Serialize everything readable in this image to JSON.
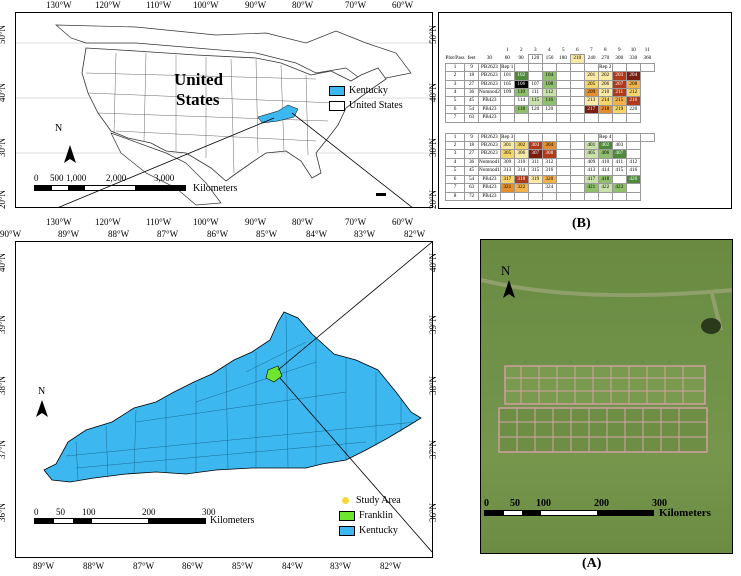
{
  "us_map": {
    "lon_ticks_top": [
      "130°W",
      "120°W",
      "110°W",
      "100°W",
      "90°W",
      "80°W",
      "70°W",
      "60°W"
    ],
    "lon_ticks_bottom": [
      "130°W",
      "120°W",
      "110°W",
      "100°W",
      "90°W",
      "80°W",
      "70°W",
      "60°W"
    ],
    "lat_ticks": [
      "50°N",
      "40°N",
      "30°N",
      "20°N"
    ],
    "country_label_1": "United",
    "country_label_2": "States",
    "legend": [
      {
        "label": "Kentucky",
        "color": "#3cb7f0"
      },
      {
        "label": "United States",
        "color": "#ffffff"
      }
    ],
    "scale_labels": [
      "0",
      "500",
      "1,000",
      "2,000",
      "3,000"
    ],
    "scale_unit": "Kilometers",
    "north": "N"
  },
  "ky_map": {
    "lon_ticks_top": [
      "90°W",
      "89°W",
      "88°W",
      "87°W",
      "86°W",
      "85°W",
      "84°W",
      "83°W",
      "82°W"
    ],
    "lon_ticks_bottom": [
      "89°W",
      "88°W",
      "87°W",
      "86°W",
      "85°W",
      "84°W",
      "83°W",
      "82°W"
    ],
    "lat_ticks": [
      "40°N",
      "39°N",
      "38°N",
      "37°N",
      "36°N"
    ],
    "scale_labels": [
      "0",
      "50",
      "100",
      "200",
      "300"
    ],
    "scale_unit": "Kilometers",
    "north": "N",
    "legend": [
      {
        "label": "Study Area",
        "color": "#f5d83b"
      },
      {
        "label": "Franklin",
        "color": "#6ee62f"
      },
      {
        "label": "Kentucky",
        "color": "#3cb7f0"
      }
    ],
    "county_color": "#3cb7f0",
    "franklin_color": "#6ee62f"
  },
  "aerial": {
    "label": "(A)",
    "north": "N",
    "scale_labels": [
      "0",
      "50",
      "100",
      "200",
      "300"
    ],
    "scale_unit": "Kilometers"
  },
  "plot_table": {
    "label": "(B)",
    "col_numbers": [
      "1",
      "2",
      "3",
      "4",
      "5",
      "6",
      "7",
      "8",
      "9",
      "10",
      "11",
      "12"
    ],
    "header_row": [
      "Plot/Pass",
      "feet",
      "30",
      "60",
      "90",
      "120",
      "150",
      "180",
      "210",
      "240",
      "270",
      "300",
      "330",
      "360"
    ],
    "block1_rows": [
      [
        "1",
        "9",
        "PB2623",
        "Rep 1",
        "",
        "",
        "",
        "",
        "",
        "",
        "Rep 2",
        "",
        "",
        ""
      ],
      [
        "2",
        "18",
        "PB2623",
        "101",
        "102",
        "",
        "104",
        "",
        "",
        "201",
        "202",
        "203",
        "204"
      ],
      [
        "3",
        "27",
        "PB2623",
        "105",
        "106",
        "107",
        "108",
        "",
        "",
        "205",
        "206",
        "207",
        "208"
      ],
      [
        "4",
        "36",
        "Nomnod2",
        "109",
        "110",
        "111",
        "112",
        "",
        "",
        "209",
        "210",
        "211",
        "212"
      ],
      [
        "5",
        "45",
        "PB423",
        "",
        "114",
        "115",
        "116",
        "",
        "",
        "213",
        "214",
        "215",
        "216"
      ],
      [
        "6",
        "54",
        "PB423",
        "",
        "118",
        "120",
        "120",
        "",
        "",
        "217",
        "218",
        "219",
        "220"
      ],
      [
        "7",
        "63",
        "PB423",
        "",
        "",
        "",
        "",
        "",
        "",
        "",
        "",
        "",
        ""
      ]
    ],
    "block2_rows": [
      [
        "1",
        "9",
        "PB2623",
        "Rep 3",
        "",
        "",
        "",
        "",
        "",
        "",
        "Rep 4",
        "",
        "",
        ""
      ],
      [
        "2",
        "18",
        "PB2623",
        "301",
        "302",
        "303",
        "304",
        "",
        "",
        "401",
        "402",
        "403",
        ""
      ],
      [
        "3",
        "27",
        "PB2623",
        "305",
        "306",
        "307",
        "308",
        "",
        "",
        "405",
        "406",
        "407",
        ""
      ],
      [
        "4",
        "36",
        "Nomnod1",
        "309",
        "310",
        "311",
        "312",
        "",
        "",
        "409",
        "410",
        "411",
        "412"
      ],
      [
        "5",
        "45",
        "Nomnod1",
        "313",
        "314",
        "315",
        "316",
        "",
        "",
        "413",
        "414",
        "415",
        "416"
      ],
      [
        "6",
        "54",
        "PB423",
        "317",
        "318",
        "319",
        "320",
        "",
        "",
        "417",
        "418",
        "",
        "420"
      ],
      [
        "7",
        "63",
        "PB423",
        "321",
        "322",
        "",
        "324",
        "",
        "",
        "421",
        "422",
        "423",
        ""
      ],
      [
        "8",
        "72",
        "PB423",
        "",
        "",
        "",
        "",
        "",
        "",
        "",
        "",
        "",
        ""
      ]
    ]
  }
}
